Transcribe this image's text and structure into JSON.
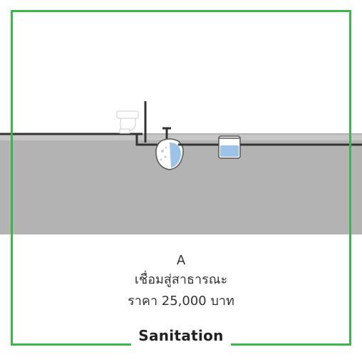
{
  "caption": {
    "option": "A",
    "connection": "เชื่อมสู่สาธารณะ",
    "price": "ราคา 25,000 บาท"
  },
  "brand": {
    "label": "Sanitation"
  },
  "colors": {
    "frame": "#3cb54a",
    "ground": "#b3b3b3",
    "pipe": "#333333",
    "water": "#9dc3e6"
  },
  "icons": [
    "toilet-icon",
    "septic-tank-icon",
    "grease-trap-icon"
  ]
}
